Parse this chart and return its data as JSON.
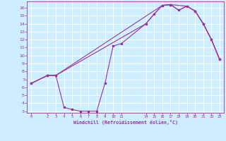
{
  "xlabel": "Windchill (Refroidissement éolien,°C)",
  "bg_color": "#cceeff",
  "grid_color": "#ffffff",
  "line_color": "#993399",
  "ylim": [
    2.8,
    16.8
  ],
  "xlim": [
    -0.5,
    23.5
  ],
  "yticks": [
    3,
    4,
    5,
    6,
    7,
    8,
    9,
    10,
    11,
    12,
    13,
    14,
    15,
    16
  ],
  "x_ticks": [
    0,
    2,
    3,
    4,
    5,
    6,
    7,
    8,
    9,
    10,
    11,
    14,
    15,
    16,
    17,
    18,
    19,
    20,
    21,
    22,
    23
  ],
  "curve1_x": [
    0,
    2,
    3,
    4,
    5,
    6,
    7,
    8,
    9,
    10,
    11,
    14,
    15,
    16,
    17,
    18,
    19,
    20,
    21,
    22,
    23
  ],
  "curve1_y": [
    6.5,
    7.5,
    7.5,
    3.5,
    3.2,
    3.0,
    3.0,
    3.0,
    6.5,
    11.2,
    11.5,
    14.0,
    15.2,
    16.3,
    16.4,
    15.7,
    16.2,
    15.6,
    14.0,
    12.0,
    9.5
  ],
  "curve2_x": [
    0,
    2,
    3,
    16,
    17,
    19,
    20,
    21,
    22,
    23
  ],
  "curve2_y": [
    6.5,
    7.5,
    7.5,
    16.3,
    16.4,
    16.2,
    15.6,
    14.0,
    12.0,
    9.5
  ],
  "curve3_x": [
    0,
    2,
    3,
    14,
    15,
    16,
    17,
    18,
    19,
    20,
    21,
    22,
    23
  ],
  "curve3_y": [
    6.5,
    7.5,
    7.5,
    14.0,
    15.2,
    16.3,
    16.4,
    15.7,
    16.2,
    15.6,
    14.0,
    12.0,
    9.5
  ]
}
